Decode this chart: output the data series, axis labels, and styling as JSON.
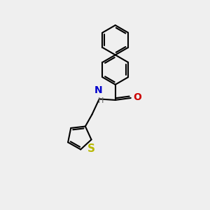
{
  "background_color": "#efefef",
  "bond_color": "#000000",
  "N_color": "#0000cc",
  "O_color": "#cc0000",
  "S_color": "#b8b800",
  "H_color": "#606060",
  "line_width": 1.5,
  "figsize": [
    3.0,
    3.0
  ],
  "dpi": 100,
  "xlim": [
    0,
    10
  ],
  "ylim": [
    0,
    10
  ],
  "ring_r": 0.72,
  "dbg": 0.09
}
